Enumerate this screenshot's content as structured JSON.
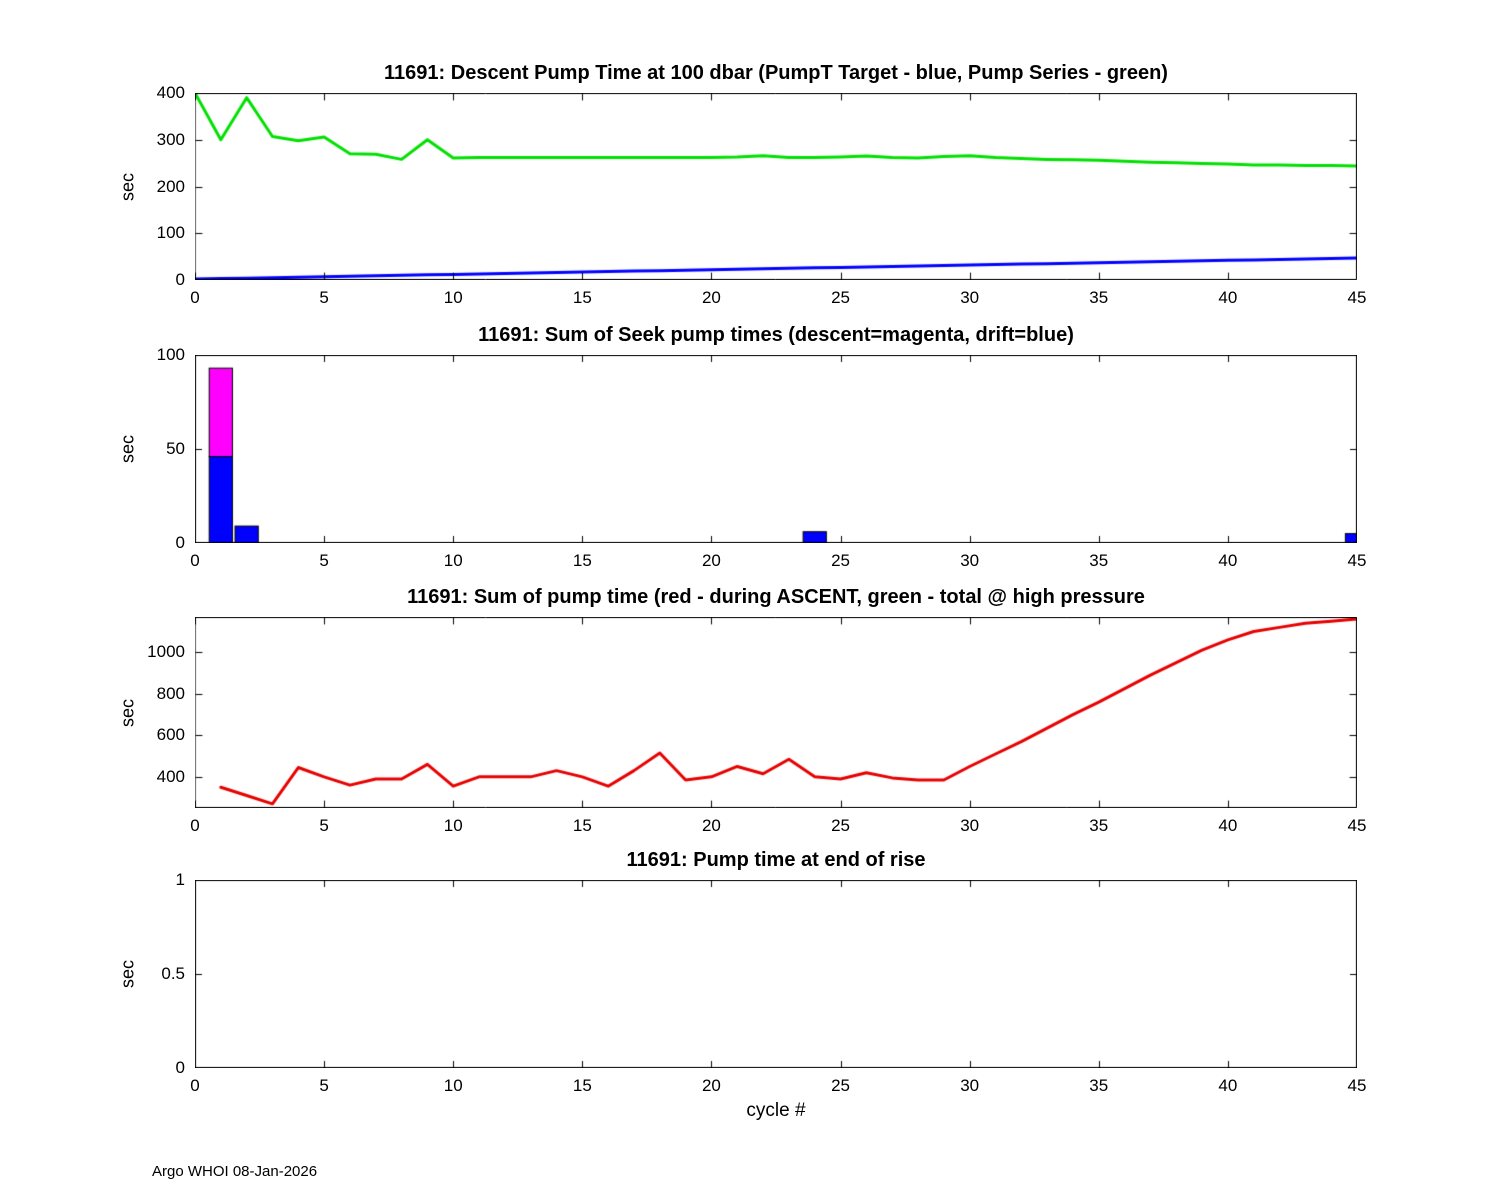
{
  "figure": {
    "xlabel": "cycle #",
    "footer": "Argo WHOI 08-Jan-2026",
    "float_id": "11691"
  },
  "chart_data": [
    {
      "type": "line",
      "title": "11691: Descent Pump Time at 100 dbar (PumpT Target - blue, Pump Series - green)",
      "ylabel": "sec",
      "xlim": [
        0,
        45
      ],
      "ylim": [
        0,
        400
      ],
      "xticks": [
        0,
        5,
        10,
        15,
        20,
        25,
        30,
        35,
        40,
        45
      ],
      "yticks": [
        0,
        100,
        200,
        300,
        400
      ],
      "series": [
        {
          "name": "Pump Series",
          "color": "#00e000",
          "x": [
            0,
            1,
            2,
            3,
            4,
            5,
            6,
            7,
            8,
            9,
            10,
            11,
            12,
            13,
            14,
            15,
            16,
            17,
            18,
            19,
            20,
            21,
            22,
            23,
            24,
            25,
            26,
            27,
            28,
            29,
            30,
            31,
            32,
            33,
            34,
            35,
            36,
            37,
            38,
            39,
            40,
            41,
            42,
            43,
            44,
            45
          ],
          "y": [
            400,
            300,
            390,
            307,
            298,
            306,
            270,
            269,
            258,
            300,
            261,
            262,
            262,
            262,
            262,
            262,
            262,
            262,
            262,
            262,
            262,
            263,
            266,
            262,
            262,
            263,
            265,
            262,
            261,
            264,
            266,
            262,
            260,
            258,
            257,
            256,
            254,
            252,
            251,
            249,
            248,
            246,
            246,
            245,
            245,
            244
          ]
        },
        {
          "name": "PumpT Target",
          "color": "#0000ff",
          "x": [
            0,
            1,
            2,
            3,
            4,
            5,
            6,
            7,
            8,
            9,
            10,
            11,
            12,
            13,
            14,
            15,
            16,
            17,
            18,
            19,
            20,
            21,
            22,
            23,
            24,
            25,
            26,
            27,
            28,
            29,
            30,
            31,
            32,
            33,
            34,
            35,
            36,
            37,
            38,
            39,
            40,
            41,
            42,
            43,
            44,
            45
          ],
          "y": [
            2,
            3,
            4,
            5,
            6,
            7,
            8,
            9,
            10,
            11,
            12,
            13,
            14,
            15,
            16,
            17,
            18,
            19,
            20,
            21,
            22,
            23,
            24,
            25,
            26,
            27,
            28,
            29,
            30,
            31,
            32,
            33,
            34,
            35,
            36,
            37,
            38,
            39,
            40,
            41,
            42,
            43,
            44,
            45,
            46,
            47
          ]
        }
      ]
    },
    {
      "type": "bar",
      "title": "11691: Sum of Seek pump times (descent=magenta, drift=blue)",
      "ylabel": "sec",
      "xlim": [
        0,
        45
      ],
      "ylim": [
        0,
        100
      ],
      "xticks": [
        0,
        5,
        10,
        15,
        20,
        25,
        30,
        35,
        40,
        45
      ],
      "yticks": [
        0,
        50,
        100
      ],
      "bar_width": 0.9,
      "bars": [
        {
          "x": 1,
          "segments": [
            {
              "color": "#0000ff",
              "value": 46
            },
            {
              "color": "#ff00ff",
              "value": 47
            }
          ]
        },
        {
          "x": 2,
          "segments": [
            {
              "color": "#0000ff",
              "value": 9
            }
          ]
        },
        {
          "x": 24,
          "segments": [
            {
              "color": "#0000ff",
              "value": 6
            }
          ]
        },
        {
          "x": 45,
          "segments": [
            {
              "color": "#0000ff",
              "value": 5
            }
          ]
        }
      ],
      "series": []
    },
    {
      "type": "line",
      "title": "11691: Sum of pump time (red - during ASCENT, green - total @ high pressure",
      "ylabel": "sec",
      "xlim": [
        0,
        45
      ],
      "ylim": [
        250,
        1170
      ],
      "xticks": [
        0,
        5,
        10,
        15,
        20,
        25,
        30,
        35,
        40,
        45
      ],
      "yticks": [
        400,
        600,
        800,
        1000
      ],
      "series": [
        {
          "name": "ASCENT pump time",
          "color": "#e60000",
          "x": [
            1,
            2,
            3,
            4,
            5,
            6,
            7,
            8,
            9,
            10,
            11,
            12,
            13,
            14,
            15,
            16,
            17,
            18,
            19,
            20,
            21,
            22,
            23,
            24,
            25,
            26,
            27,
            28,
            29,
            30,
            31,
            32,
            33,
            34,
            35,
            36,
            37,
            38,
            39,
            40,
            41,
            42,
            43,
            44,
            45
          ],
          "y": [
            350,
            310,
            270,
            445,
            400,
            360,
            390,
            390,
            460,
            355,
            400,
            400,
            400,
            430,
            400,
            355,
            430,
            515,
            385,
            400,
            450,
            415,
            485,
            400,
            390,
            420,
            395,
            385,
            385,
            450,
            510,
            570,
            635,
            700,
            760,
            825,
            890,
            950,
            1010,
            1060,
            1100,
            1120,
            1140,
            1150,
            1160
          ]
        }
      ]
    },
    {
      "type": "line",
      "title": "11691: Pump time at end of rise",
      "ylabel": "sec",
      "xlim": [
        0,
        45
      ],
      "ylim": [
        0,
        1
      ],
      "xticks": [
        0,
        5,
        10,
        15,
        20,
        25,
        30,
        35,
        40,
        45
      ],
      "yticks": [
        0,
        0.5,
        1
      ],
      "series": []
    }
  ]
}
